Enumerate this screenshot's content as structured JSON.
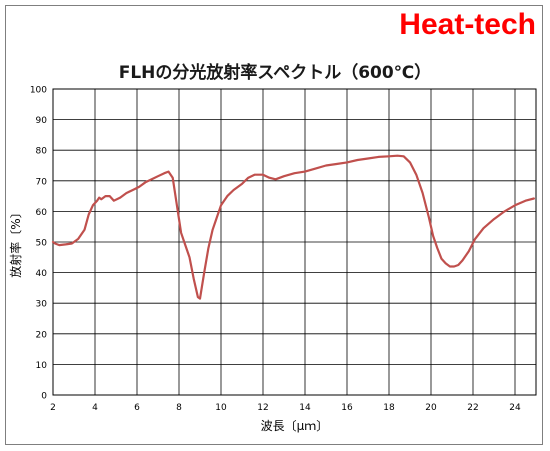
{
  "brand": "Heat-tech",
  "chart_data": {
    "type": "line",
    "title": "FLHの分光放射率スペクトル（600℃）",
    "xlabel": "波長〔μｍ〕",
    "ylabel": "放射率〔%〕",
    "xlim": [
      2,
      25
    ],
    "ylim": [
      0,
      100
    ],
    "xticks": [
      2,
      4,
      6,
      8,
      10,
      12,
      14,
      16,
      18,
      20,
      22,
      24
    ],
    "yticks": [
      0,
      10,
      20,
      30,
      40,
      50,
      60,
      70,
      80,
      90,
      100
    ],
    "grid": true,
    "line_color": "#c0504d",
    "series": [
      {
        "x": [
          2.0,
          2.1,
          2.3,
          2.6,
          2.9,
          3.2,
          3.5,
          3.7,
          3.9,
          4.1,
          4.2,
          4.3,
          4.5,
          4.7,
          4.9,
          5.2,
          5.5,
          5.8,
          6.1,
          6.4,
          6.7,
          7.0,
          7.3,
          7.5,
          7.7,
          7.9,
          8.1,
          8.3,
          8.5,
          8.7,
          8.9,
          9.0,
          9.2,
          9.4,
          9.6,
          9.8,
          10.0,
          10.3,
          10.6,
          11.0,
          11.3,
          11.6,
          12.0,
          12.3,
          12.6,
          13.0,
          13.5,
          14.0,
          14.5,
          15.0,
          15.5,
          16.0,
          16.5,
          17.0,
          17.5,
          18.0,
          18.4,
          18.7,
          19.0,
          19.3,
          19.6,
          19.9,
          20.1,
          20.3,
          20.5,
          20.7,
          20.9,
          21.1,
          21.3,
          21.5,
          21.8,
          22.1,
          22.5,
          23.0,
          23.5,
          24.0,
          24.5,
          24.9
        ],
        "y": [
          50,
          49.5,
          49,
          49.2,
          49.5,
          51,
          54,
          59,
          62,
          63.5,
          64.5,
          64,
          65,
          65,
          63.5,
          64.5,
          66,
          67,
          68,
          69.5,
          70.5,
          71.5,
          72.5,
          73,
          71,
          62,
          53,
          49,
          45,
          38,
          32,
          31.5,
          40,
          48,
          54,
          58,
          62,
          65,
          67,
          69,
          71,
          72,
          72,
          71,
          70.5,
          71.5,
          72.5,
          73,
          74,
          75,
          75.5,
          76,
          76.8,
          77.3,
          77.8,
          78,
          78.2,
          78,
          76,
          72,
          66,
          58,
          52,
          48,
          44.5,
          43,
          42,
          42,
          42.5,
          44,
          47,
          51,
          54.5,
          57.5,
          60,
          62,
          63.5,
          64.2
        ]
      }
    ]
  }
}
